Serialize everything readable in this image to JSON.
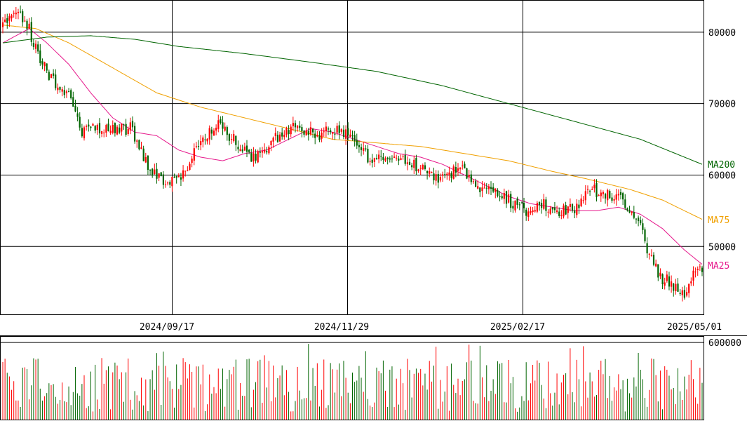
{
  "chart_data": {
    "type": "candlestick",
    "x_tick_labels": [
      "2024/09/17",
      "2024/11/29",
      "2025/02/17",
      "2025/05/01"
    ],
    "price_ticks": [
      50000,
      60000,
      70000,
      80000
    ],
    "price_tick_labels": [
      "50000",
      "60000",
      "70000",
      "80000"
    ],
    "volume_tick_label": "600000",
    "volume_tick_value": 600000,
    "price_range": [
      40500,
      84500
    ],
    "volume_range": [
      0,
      650000
    ],
    "grid": true,
    "colors": {
      "up": "#ff0000",
      "down": "#006400",
      "ma25": "#e6198c",
      "ma75": "#f0a000",
      "ma200": "#006400",
      "grid": "#000000"
    },
    "moving_averages": [
      {
        "name": "MA25",
        "color": "#e6198c",
        "anchors": [
          [
            0,
            78500
          ],
          [
            12,
            80500
          ],
          [
            20,
            78500
          ],
          [
            30,
            75500
          ],
          [
            40,
            71500
          ],
          [
            50,
            68000
          ],
          [
            60,
            66000
          ],
          [
            70,
            65500
          ],
          [
            80,
            63500
          ],
          [
            90,
            62500
          ],
          [
            100,
            62000
          ],
          [
            110,
            63000
          ],
          [
            120,
            63500
          ],
          [
            130,
            65000
          ],
          [
            140,
            66500
          ],
          [
            150,
            66000
          ],
          [
            160,
            65000
          ],
          [
            170,
            64000
          ],
          [
            180,
            63000
          ],
          [
            190,
            62500
          ],
          [
            200,
            61500
          ],
          [
            210,
            60000
          ],
          [
            220,
            58500
          ],
          [
            230,
            57000
          ],
          [
            240,
            56000
          ],
          [
            250,
            55500
          ],
          [
            260,
            55000
          ],
          [
            270,
            55000
          ],
          [
            280,
            55500
          ],
          [
            290,
            54500
          ],
          [
            300,
            52500
          ],
          [
            310,
            49500
          ],
          [
            318,
            47500
          ]
        ]
      },
      {
        "name": "MA75",
        "color": "#f0a000",
        "anchors": [
          [
            0,
            81000
          ],
          [
            15,
            80500
          ],
          [
            30,
            78500
          ],
          [
            50,
            75000
          ],
          [
            70,
            71500
          ],
          [
            90,
            69500
          ],
          [
            110,
            68000
          ],
          [
            130,
            66500
          ],
          [
            150,
            65000
          ],
          [
            170,
            64500
          ],
          [
            190,
            64000
          ],
          [
            210,
            63000
          ],
          [
            230,
            62000
          ],
          [
            250,
            60500
          ],
          [
            265,
            59500
          ],
          [
            285,
            58000
          ],
          [
            300,
            56500
          ],
          [
            318,
            53800
          ]
        ]
      },
      {
        "name": "MA200",
        "color": "#006400",
        "anchors": [
          [
            0,
            78500
          ],
          [
            20,
            79300
          ],
          [
            40,
            79500
          ],
          [
            60,
            79000
          ],
          [
            80,
            78000
          ],
          [
            110,
            77000
          ],
          [
            140,
            75800
          ],
          [
            170,
            74500
          ],
          [
            200,
            72500
          ],
          [
            230,
            70000
          ],
          [
            260,
            67500
          ],
          [
            290,
            65000
          ],
          [
            318,
            61500
          ]
        ]
      }
    ],
    "ohlc_anchors": [
      [
        0,
        81000
      ],
      [
        8,
        82500
      ],
      [
        12,
        80500
      ],
      [
        16,
        76500
      ],
      [
        24,
        72500
      ],
      [
        30,
        71000
      ],
      [
        36,
        66000
      ],
      [
        46,
        66500
      ],
      [
        58,
        66500
      ],
      [
        66,
        61500
      ],
      [
        74,
        58500
      ],
      [
        82,
        60000
      ],
      [
        90,
        65000
      ],
      [
        98,
        67000
      ],
      [
        108,
        64000
      ],
      [
        114,
        62500
      ],
      [
        122,
        64500
      ],
      [
        132,
        67000
      ],
      [
        142,
        65500
      ],
      [
        152,
        66500
      ],
      [
        160,
        65000
      ],
      [
        166,
        62500
      ],
      [
        176,
        62200
      ],
      [
        184,
        62300
      ],
      [
        192,
        60500
      ],
      [
        200,
        59500
      ],
      [
        208,
        61000
      ],
      [
        214,
        59000
      ],
      [
        222,
        57500
      ],
      [
        230,
        56500
      ],
      [
        238,
        54800
      ],
      [
        246,
        56000
      ],
      [
        254,
        55000
      ],
      [
        262,
        55500
      ],
      [
        266,
        58500
      ],
      [
        274,
        57000
      ],
      [
        280,
        57500
      ],
      [
        284,
        55700
      ],
      [
        290,
        52700
      ],
      [
        294,
        48500
      ],
      [
        300,
        45500
      ],
      [
        306,
        44500
      ],
      [
        310,
        43000
      ],
      [
        314,
        46000
      ],
      [
        318,
        46500
      ]
    ],
    "volume_ref": 600000
  }
}
